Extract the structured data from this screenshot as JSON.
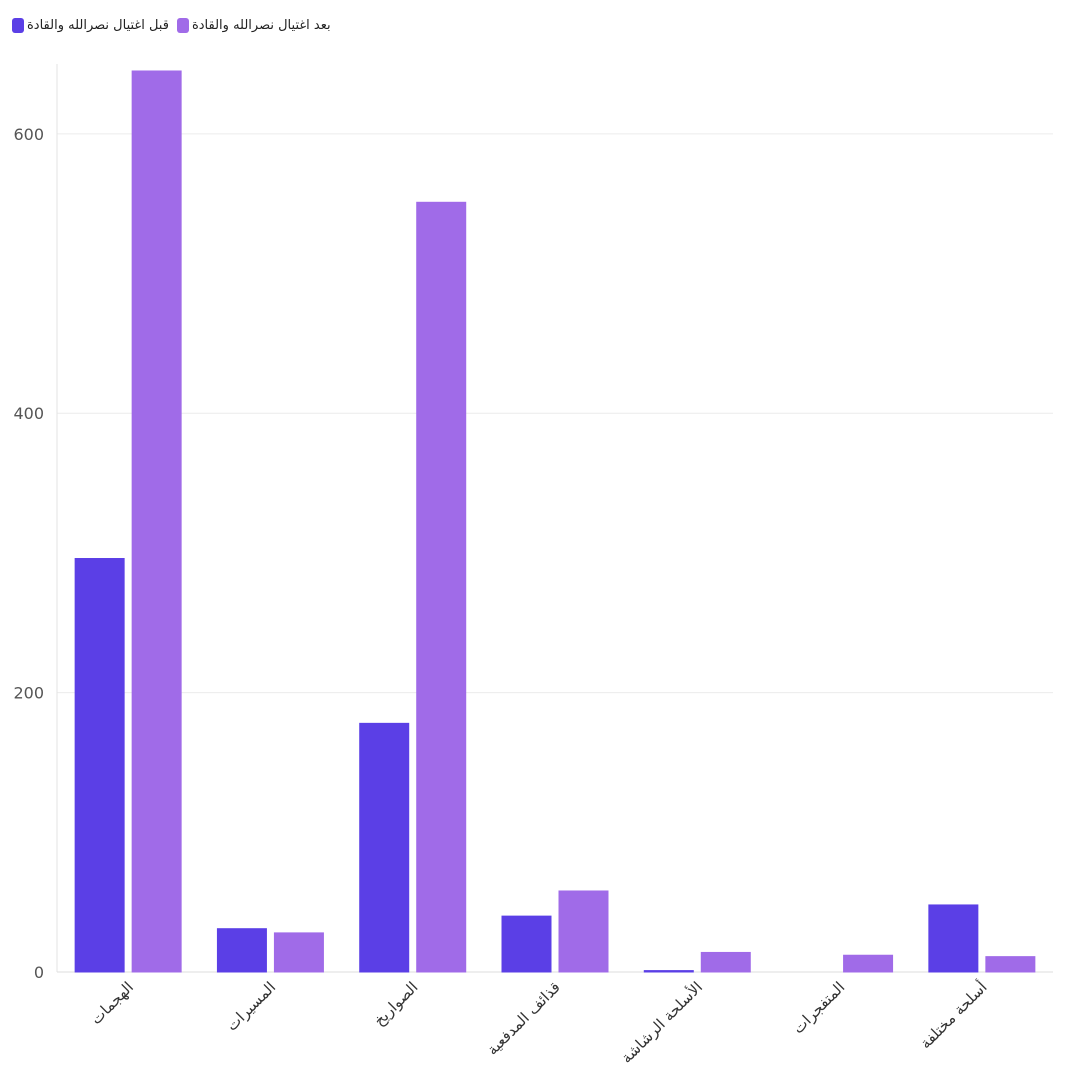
{
  "chart_data": {
    "type": "bar",
    "categories": [
      "الهجمات",
      "المسيرات",
      "الصواريخ",
      "قذائف المدفعية",
      "الأسلحة الرشاشة",
      "المتفجرات",
      "أسلحة مختلفة"
    ],
    "series": [
      {
        "name": "قبل اغتيال نصرالله والقادة",
        "color": "#5b3fe6",
        "values": [
          296,
          31,
          178,
          40,
          1,
          0,
          48
        ]
      },
      {
        "name": "بعد اغتيال نصرالله والقادة",
        "color": "#a06be8",
        "values": [
          645,
          28,
          551,
          58,
          14,
          12,
          11
        ]
      }
    ],
    "ylim": [
      0,
      650
    ],
    "yticks": [
      0,
      200,
      400,
      600
    ],
    "grid": true,
    "legend": "top-left"
  }
}
